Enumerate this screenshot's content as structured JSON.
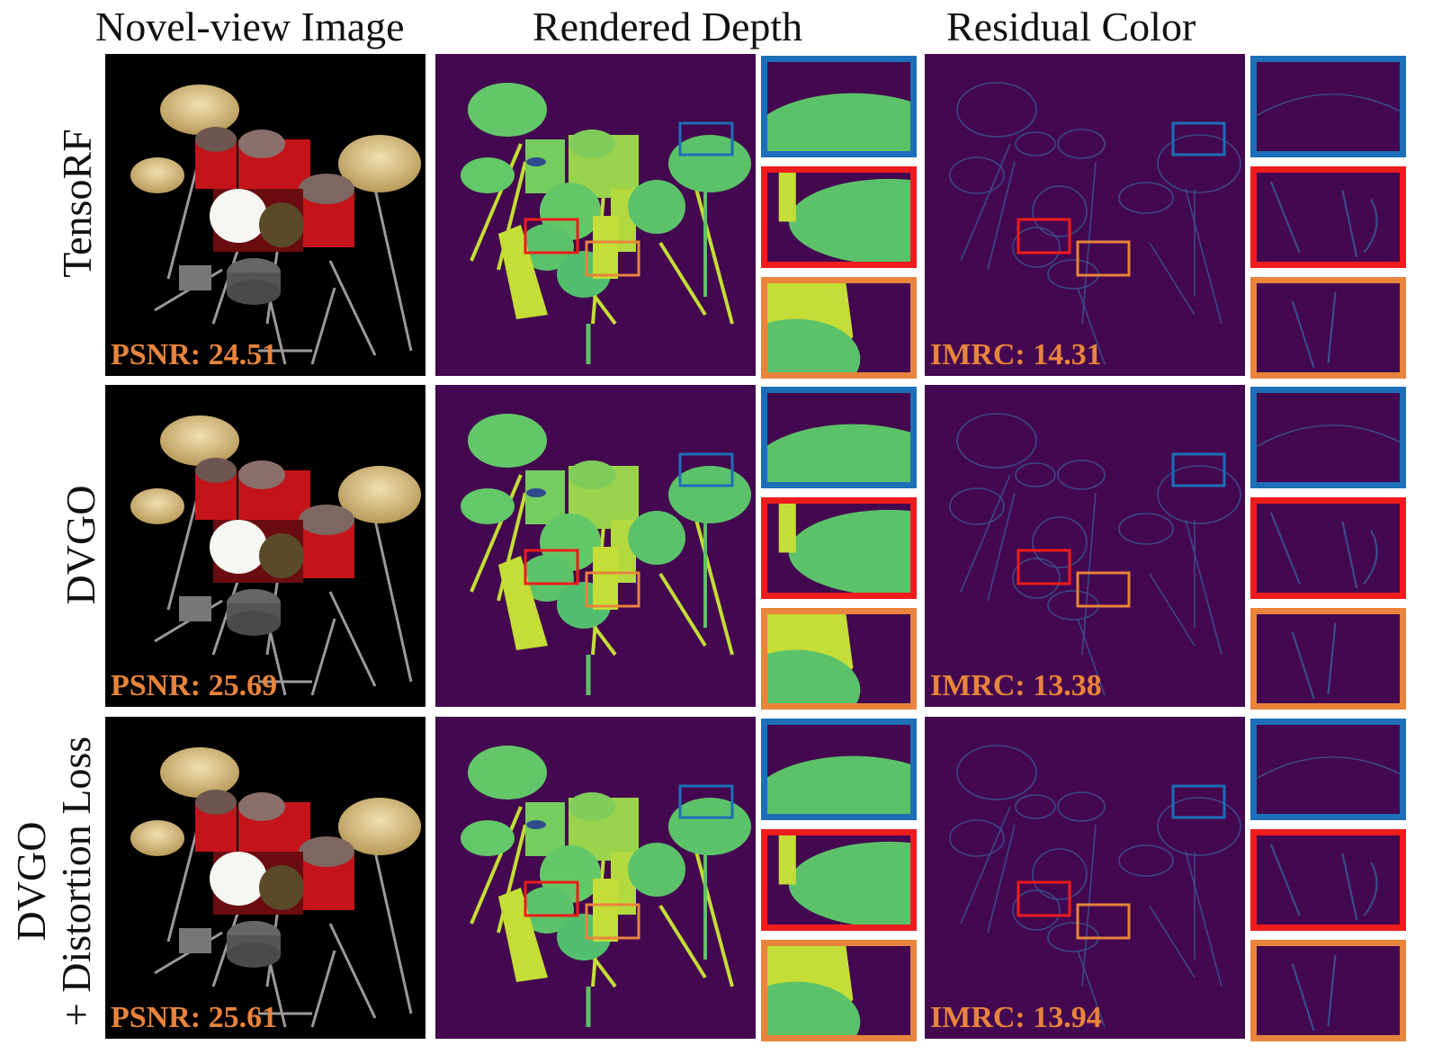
{
  "columns": {
    "novel_view": "Novel-view Image",
    "rendered_depth": "Rendered Depth",
    "residual_color": "Residual Color"
  },
  "rows": [
    {
      "label_line1": "TensoRF",
      "label_line2": "",
      "psnr": "PSNR: 24.51",
      "imrc": "IMRC: 14.31"
    },
    {
      "label_line1": "DVGO",
      "label_line2": "",
      "psnr": "PSNR: 25.69",
      "imrc": "IMRC: 13.38"
    },
    {
      "label_line1": "DVGO",
      "label_line2": "+ Distortion Loss",
      "psnr": "PSNR: 25.61",
      "imrc": "IMRC: 13.94"
    }
  ],
  "colors": {
    "depth_background": "#43084f",
    "depth_foreground": "#5cc26a",
    "depth_near": "#c4dd37",
    "metric_text": "#e8843c",
    "box_blue": "#1c6fb8",
    "box_red": "#ee1c1c",
    "box_orange": "#e8843c"
  }
}
